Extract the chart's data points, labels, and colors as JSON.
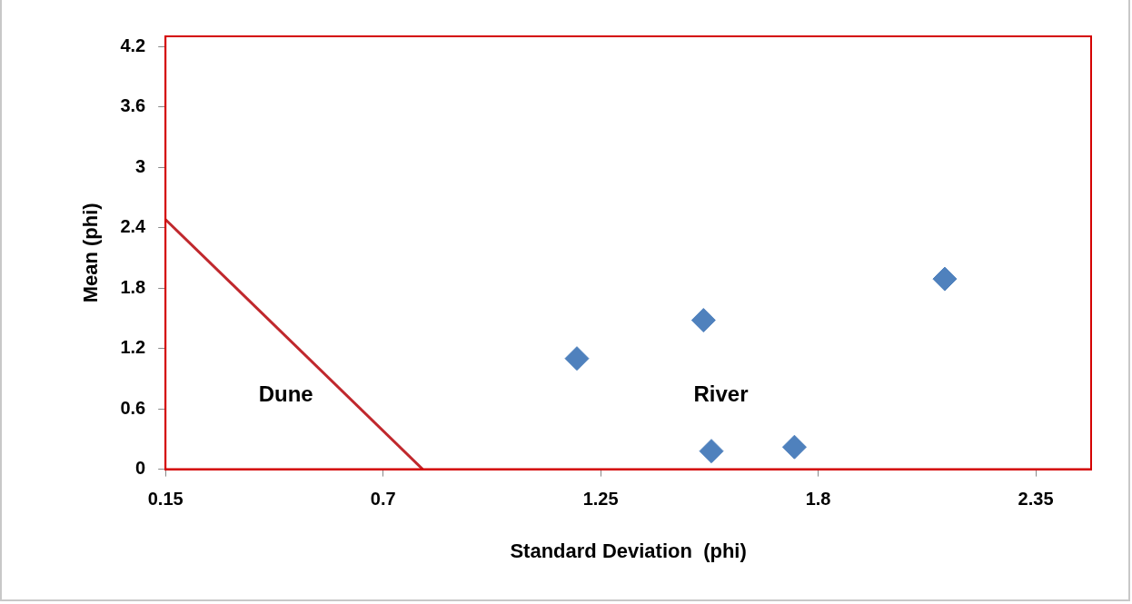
{
  "chart_data": {
    "type": "scatter",
    "xlabel": "Standard Deviation  (phi)",
    "ylabel": "Mean (phi)",
    "series": [
      {
        "color": "#4f81bd",
        "marker": "diamond",
        "x": [
          1.19,
          1.51,
          2.12,
          1.53,
          1.74
        ],
        "values": [
          1.1,
          1.48,
          1.89,
          0.18,
          0.22
        ]
      },
      {
        "type": "line",
        "color": "#c0282d",
        "marker": "none",
        "line_style": "solid",
        "x": [
          0.15,
          0.8
        ],
        "values": [
          2.48,
          0
        ]
      }
    ],
    "xlim": [
      0.15,
      2.49
    ],
    "xticks": [
      0.15,
      0.7,
      1.25,
      1.8,
      2.35
    ],
    "ylim": [
      0,
      4.3
    ],
    "yticks": [
      0,
      0.6,
      1.2,
      1.8,
      2.4,
      3,
      3.6,
      4.2
    ],
    "grid": false,
    "legend": false,
    "annotations": [
      "Dune",
      "River"
    ]
  }
}
